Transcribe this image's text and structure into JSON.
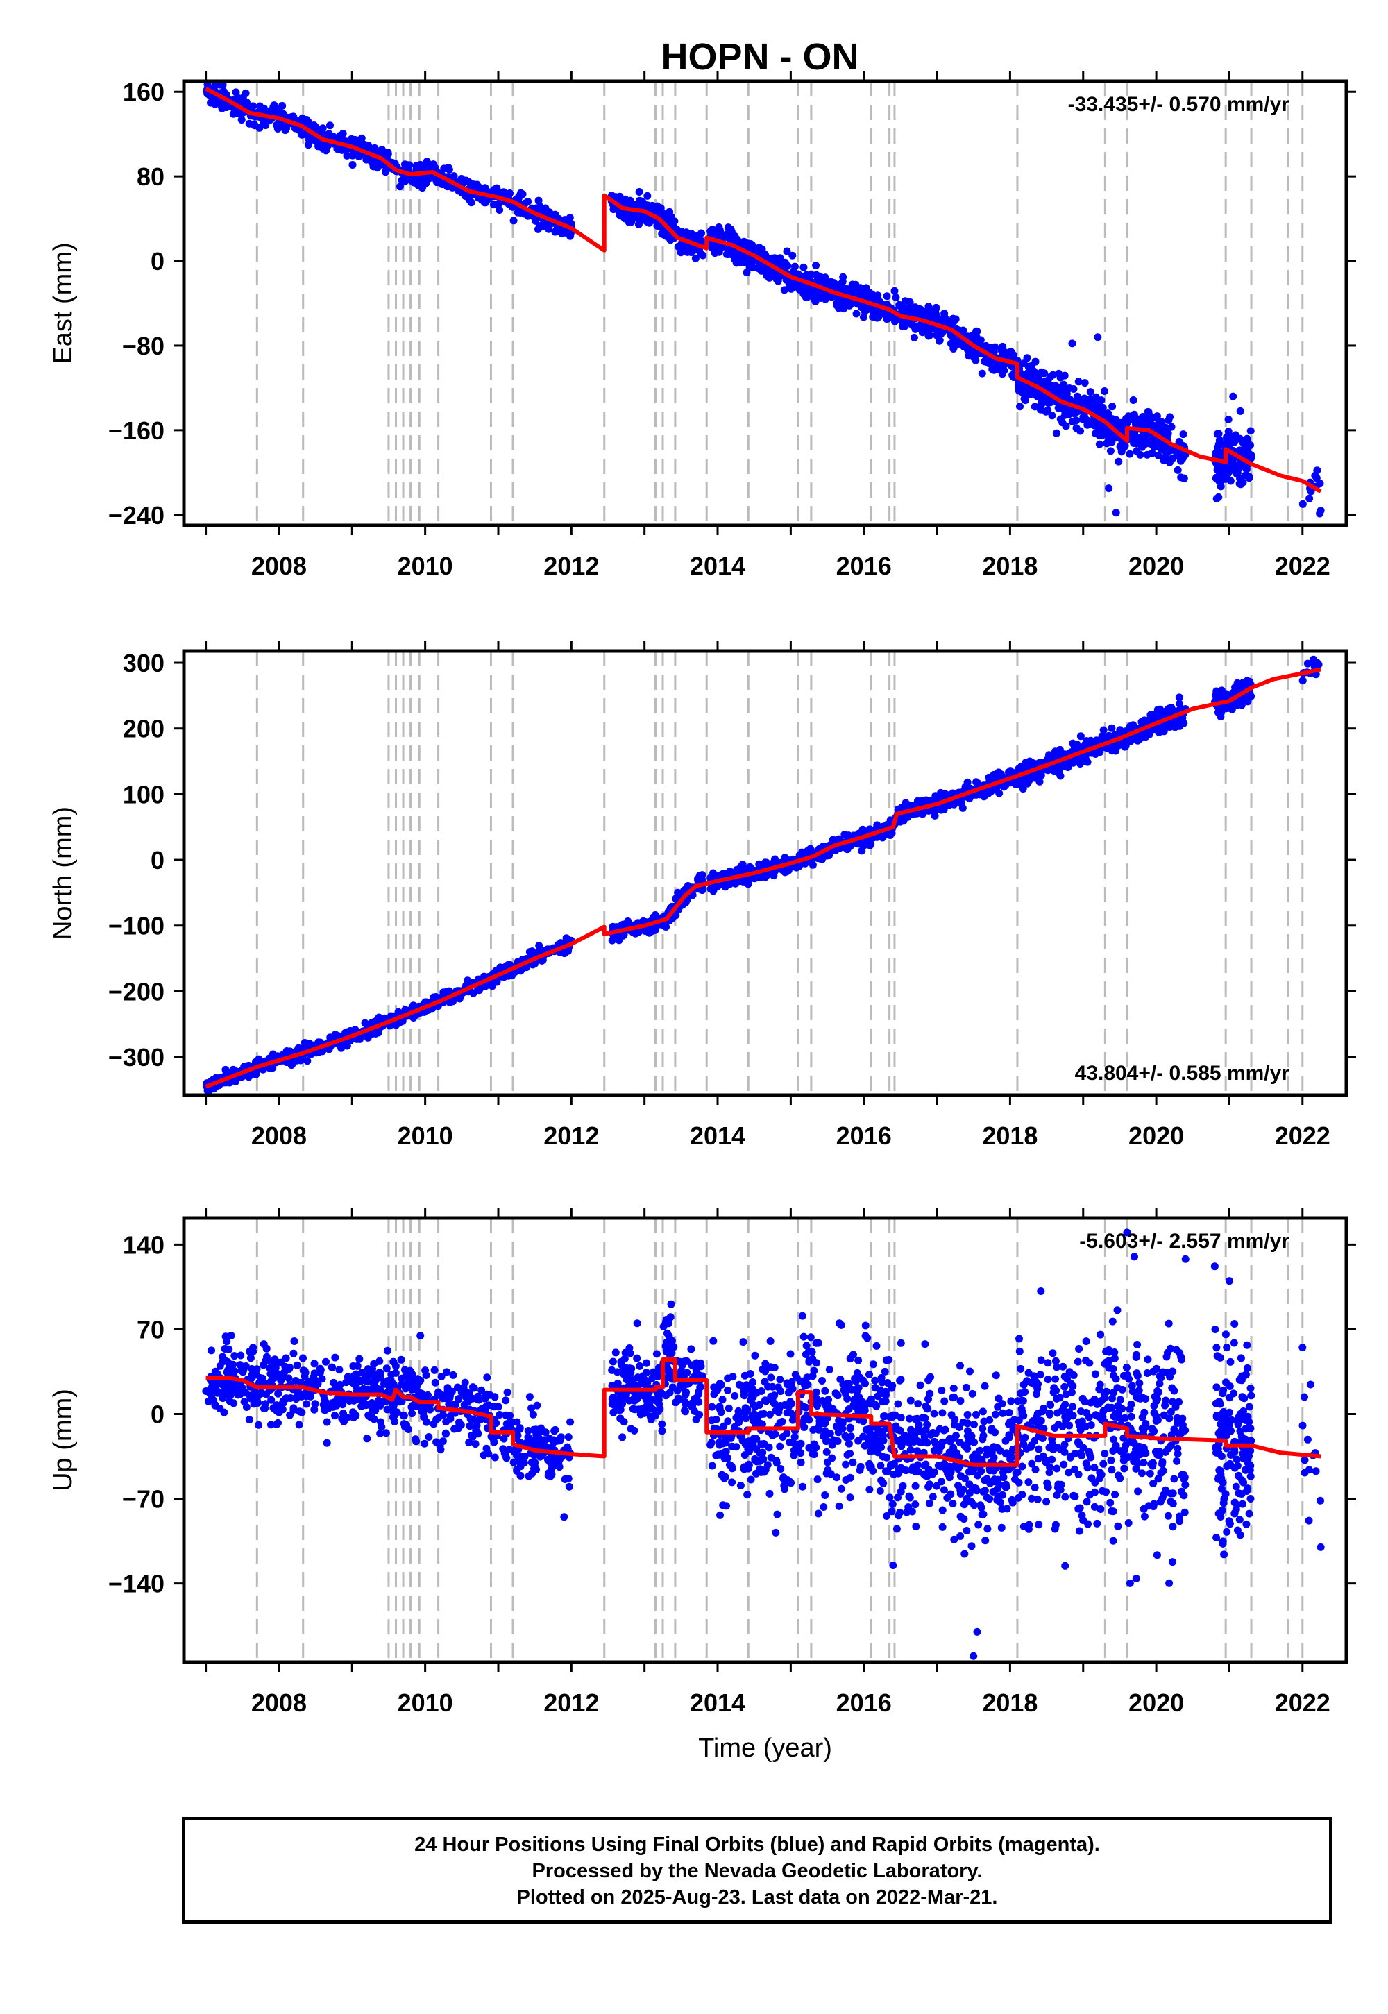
{
  "title": "HOPN - ON",
  "caption": {
    "line1": "24 Hour Positions Using Final Orbits (blue) and Rapid Orbits (magenta).",
    "line2": "Processed by the Nevada Geodetic Laboratory.",
    "line3": "Plotted on 2025-Aug-23. Last data on 2022-Mar-21."
  },
  "colors": {
    "data": "#0000ff",
    "model": "#ff0000",
    "steps": "#bbbbbb"
  },
  "chart_data": [
    {
      "type": "scatter",
      "panel": "east",
      "ylabel": "East (mm)",
      "xlabel": "",
      "xlim": [
        2006.7,
        2022.6
      ],
      "ylim": [
        -250,
        170
      ],
      "yticks": [
        160,
        80,
        0,
        -80,
        -160,
        -240
      ],
      "xticks": [
        2008,
        2010,
        2012,
        2014,
        2016,
        2018,
        2020,
        2022
      ],
      "rate_label": "-33.435+/- 0.570 mm/yr",
      "rate_position": "top-right",
      "grid": false,
      "step_epochs": [
        2007.7,
        2008.33,
        2009.5,
        2009.6,
        2009.7,
        2009.8,
        2009.92,
        2010.18,
        2010.9,
        2011.2,
        2012.45,
        2013.15,
        2013.25,
        2013.42,
        2013.85,
        2014.42,
        2015.1,
        2015.28,
        2016.1,
        2016.35,
        2016.42,
        2018.1,
        2019.3,
        2019.6,
        2020.95,
        2021.3,
        2021.8,
        2022.0
      ],
      "model": [
        [
          2007.0,
          163
        ],
        [
          2007.3,
          152
        ],
        [
          2007.6,
          140
        ],
        [
          2008.0,
          135
        ],
        [
          2008.3,
          128
        ],
        [
          2008.6,
          115
        ],
        [
          2009.0,
          108
        ],
        [
          2009.4,
          97
        ],
        [
          2009.6,
          86
        ],
        [
          2009.8,
          82
        ],
        [
          2010.1,
          84
        ],
        [
          2010.3,
          77
        ],
        [
          2010.6,
          66
        ],
        [
          2011.0,
          60
        ],
        [
          2011.2,
          56
        ],
        [
          2011.5,
          45
        ],
        [
          2012.0,
          31
        ],
        [
          2012.45,
          10
        ],
        [
          2012.45,
          62
        ],
        [
          2012.7,
          50
        ],
        [
          2013.0,
          47
        ],
        [
          2013.2,
          40
        ],
        [
          2013.45,
          22
        ],
        [
          2013.85,
          12
        ],
        [
          2013.85,
          22
        ],
        [
          2014.2,
          15
        ],
        [
          2014.5,
          5
        ],
        [
          2015.0,
          -15
        ],
        [
          2015.3,
          -22
        ],
        [
          2015.6,
          -30
        ],
        [
          2016.0,
          -38
        ],
        [
          2016.35,
          -46
        ],
        [
          2016.5,
          -52
        ],
        [
          2016.8,
          -56
        ],
        [
          2017.2,
          -65
        ],
        [
          2017.5,
          -80
        ],
        [
          2017.8,
          -92
        ],
        [
          2018.1,
          -97
        ],
        [
          2018.1,
          -110
        ],
        [
          2018.4,
          -120
        ],
        [
          2018.7,
          -133
        ],
        [
          2019.0,
          -140
        ],
        [
          2019.3,
          -152
        ],
        [
          2019.6,
          -170
        ],
        [
          2019.6,
          -158
        ],
        [
          2019.9,
          -160
        ],
        [
          2020.2,
          -173
        ],
        [
          2020.6,
          -185
        ],
        [
          2020.95,
          -190
        ],
        [
          2020.95,
          -178
        ],
        [
          2021.3,
          -192
        ],
        [
          2021.7,
          -203
        ],
        [
          2022.0,
          -208
        ],
        [
          2022.25,
          -218
        ]
      ],
      "observations": {
        "color": "blue",
        "segments": [
          {
            "x_start": 2007.0,
            "x_end": 2012.0,
            "spread": 5,
            "count": 700
          },
          {
            "x_start": 2012.55,
            "x_end": 2013.8,
            "spread": 6,
            "count": 220
          },
          {
            "x_start": 2013.9,
            "x_end": 2018.1,
            "spread": 7,
            "count": 800
          },
          {
            "x_start": 2018.1,
            "x_end": 2020.4,
            "spread": 11,
            "count": 450
          },
          {
            "x_start": 2020.8,
            "x_end": 2021.3,
            "spread": 12,
            "count": 150
          },
          {
            "x_start": 2022.0,
            "x_end": 2022.25,
            "spread": 10,
            "count": 12
          }
        ],
        "outliers": [
          [
            2018.85,
            -78
          ],
          [
            2019.2,
            -72
          ],
          [
            2019.45,
            -238
          ],
          [
            2019.35,
            -215
          ],
          [
            2021.05,
            -128
          ],
          [
            2021.15,
            -142
          ],
          [
            2022.2,
            -198
          ],
          [
            2022.25,
            -236
          ]
        ]
      }
    },
    {
      "type": "scatter",
      "panel": "north",
      "ylabel": "North (mm)",
      "xlabel": "",
      "xlim": [
        2006.7,
        2022.6
      ],
      "ylim": [
        -358,
        318
      ],
      "yticks": [
        300,
        200,
        100,
        0,
        -100,
        -200,
        -300
      ],
      "xticks": [
        2008,
        2010,
        2012,
        2014,
        2016,
        2018,
        2020,
        2022
      ],
      "rate_label": "43.804+/- 0.585 mm/yr",
      "rate_position": "bottom-right",
      "grid": false,
      "step_epochs": [
        2007.7,
        2008.33,
        2009.5,
        2009.6,
        2009.7,
        2009.8,
        2009.92,
        2010.18,
        2010.9,
        2011.2,
        2012.45,
        2013.15,
        2013.25,
        2013.42,
        2013.85,
        2014.42,
        2015.1,
        2015.28,
        2016.1,
        2016.35,
        2016.42,
        2018.1,
        2019.3,
        2019.6,
        2020.95,
        2021.3,
        2021.8,
        2022.0
      ],
      "model": [
        [
          2007.0,
          -345
        ],
        [
          2007.7,
          -315
        ],
        [
          2008.3,
          -295
        ],
        [
          2009.0,
          -268
        ],
        [
          2009.6,
          -242
        ],
        [
          2010.2,
          -215
        ],
        [
          2010.9,
          -180
        ],
        [
          2011.5,
          -150
        ],
        [
          2012.0,
          -128
        ],
        [
          2012.45,
          -102
        ],
        [
          2012.45,
          -113
        ],
        [
          2013.0,
          -100
        ],
        [
          2013.3,
          -90
        ],
        [
          2013.55,
          -55
        ],
        [
          2013.7,
          -40
        ],
        [
          2014.0,
          -32
        ],
        [
          2014.5,
          -20
        ],
        [
          2015.0,
          -5
        ],
        [
          2015.3,
          5
        ],
        [
          2015.6,
          22
        ],
        [
          2016.0,
          35
        ],
        [
          2016.4,
          50
        ],
        [
          2016.45,
          70
        ],
        [
          2017.0,
          85
        ],
        [
          2017.5,
          105
        ],
        [
          2018.1,
          128
        ],
        [
          2018.6,
          148
        ],
        [
          2019.0,
          165
        ],
        [
          2019.5,
          185
        ],
        [
          2020.0,
          208
        ],
        [
          2020.5,
          230
        ],
        [
          2021.0,
          242
        ],
        [
          2021.3,
          262
        ],
        [
          2021.6,
          275
        ],
        [
          2022.0,
          284
        ],
        [
          2022.25,
          290
        ]
      ],
      "observations": {
        "color": "blue",
        "segments": [
          {
            "x_start": 2007.0,
            "x_end": 2012.0,
            "spread": 5,
            "count": 700
          },
          {
            "x_start": 2012.55,
            "x_end": 2013.8,
            "spread": 6,
            "count": 220
          },
          {
            "x_start": 2013.9,
            "x_end": 2018.1,
            "spread": 6,
            "count": 800
          },
          {
            "x_start": 2018.1,
            "x_end": 2020.4,
            "spread": 8,
            "count": 450
          },
          {
            "x_start": 2020.8,
            "x_end": 2021.3,
            "spread": 8,
            "count": 150
          },
          {
            "x_start": 2022.0,
            "x_end": 2022.25,
            "spread": 8,
            "count": 12
          }
        ],
        "outliers": [
          [
            2022.15,
            305
          ],
          [
            2022.2,
            300
          ]
        ]
      }
    },
    {
      "type": "scatter",
      "panel": "up",
      "ylabel": "Up (mm)",
      "xlabel": "Time (year)",
      "xlim": [
        2006.7,
        2022.6
      ],
      "ylim": [
        -205,
        162
      ],
      "yticks": [
        140,
        70,
        0,
        -70,
        -140
      ],
      "xticks": [
        2008,
        2010,
        2012,
        2014,
        2016,
        2018,
        2020,
        2022
      ],
      "rate_label": "-5.603+/- 2.557 mm/yr",
      "rate_position": "top-right",
      "grid": false,
      "step_epochs": [
        2007.7,
        2008.33,
        2009.5,
        2009.6,
        2009.7,
        2009.8,
        2009.92,
        2010.18,
        2010.9,
        2011.2,
        2012.45,
        2013.15,
        2013.25,
        2013.42,
        2013.85,
        2014.42,
        2015.1,
        2015.28,
        2016.1,
        2016.35,
        2016.42,
        2018.1,
        2019.3,
        2019.6,
        2020.95,
        2021.3,
        2021.8,
        2022.0
      ],
      "model": [
        [
          2007.0,
          30
        ],
        [
          2007.3,
          30
        ],
        [
          2007.5,
          28
        ],
        [
          2007.7,
          22
        ],
        [
          2008.0,
          22
        ],
        [
          2008.33,
          22
        ],
        [
          2008.6,
          18
        ],
        [
          2009.0,
          16
        ],
        [
          2009.4,
          16
        ],
        [
          2009.55,
          12
        ],
        [
          2009.6,
          20
        ],
        [
          2009.7,
          14
        ],
        [
          2009.8,
          14
        ],
        [
          2009.92,
          10
        ],
        [
          2010.18,
          10
        ],
        [
          2010.18,
          5
        ],
        [
          2010.6,
          2
        ],
        [
          2010.9,
          -2
        ],
        [
          2010.9,
          -15
        ],
        [
          2011.2,
          -15
        ],
        [
          2011.2,
          -25
        ],
        [
          2011.5,
          -30
        ],
        [
          2012.0,
          -33
        ],
        [
          2012.45,
          -35
        ],
        [
          2012.45,
          20
        ],
        [
          2013.15,
          20
        ],
        [
          2013.15,
          22
        ],
        [
          2013.25,
          22
        ],
        [
          2013.25,
          45
        ],
        [
          2013.42,
          45
        ],
        [
          2013.42,
          28
        ],
        [
          2013.85,
          28
        ],
        [
          2013.85,
          -15
        ],
        [
          2014.42,
          -15
        ],
        [
          2014.42,
          -12
        ],
        [
          2015.1,
          -12
        ],
        [
          2015.1,
          18
        ],
        [
          2015.28,
          18
        ],
        [
          2015.28,
          0
        ],
        [
          2016.1,
          -2
        ],
        [
          2016.1,
          -8
        ],
        [
          2016.35,
          -8
        ],
        [
          2016.42,
          -35
        ],
        [
          2017.0,
          -35
        ],
        [
          2017.5,
          -42
        ],
        [
          2018.1,
          -42
        ],
        [
          2018.1,
          -10
        ],
        [
          2018.6,
          -18
        ],
        [
          2019.3,
          -18
        ],
        [
          2019.3,
          -8
        ],
        [
          2019.6,
          -12
        ],
        [
          2019.6,
          -18
        ],
        [
          2020.0,
          -20
        ],
        [
          2020.95,
          -22
        ],
        [
          2020.95,
          -26
        ],
        [
          2021.3,
          -26
        ],
        [
          2021.7,
          -32
        ],
        [
          2022.25,
          -35
        ]
      ],
      "observations": {
        "color": "blue",
        "segments": [
          {
            "x_start": 2007.0,
            "x_end": 2012.0,
            "spread": 14,
            "count": 700
          },
          {
            "x_start": 2012.55,
            "x_end": 2013.8,
            "spread": 16,
            "count": 220
          },
          {
            "x_start": 2013.9,
            "x_end": 2018.1,
            "spread": 30,
            "count": 800
          },
          {
            "x_start": 2018.1,
            "x_end": 2020.4,
            "spread": 38,
            "count": 450
          },
          {
            "x_start": 2020.8,
            "x_end": 2021.3,
            "spread": 38,
            "count": 150
          },
          {
            "x_start": 2022.0,
            "x_end": 2022.25,
            "spread": 28,
            "count": 12
          }
        ],
        "outliers": [
          [
            2011.9,
            -85
          ],
          [
            2012.9,
            75
          ],
          [
            2013.3,
            78
          ],
          [
            2017.5,
            -200
          ],
          [
            2017.55,
            -180
          ],
          [
            2016.4,
            -125
          ],
          [
            2019.6,
            150
          ],
          [
            2019.7,
            130
          ],
          [
            2020.4,
            128
          ],
          [
            2020.8,
            122
          ],
          [
            2021.0,
            110
          ],
          [
            2021.15,
            -100
          ],
          [
            2022.0,
            55
          ],
          [
            2022.25,
            -110
          ]
        ]
      }
    }
  ]
}
